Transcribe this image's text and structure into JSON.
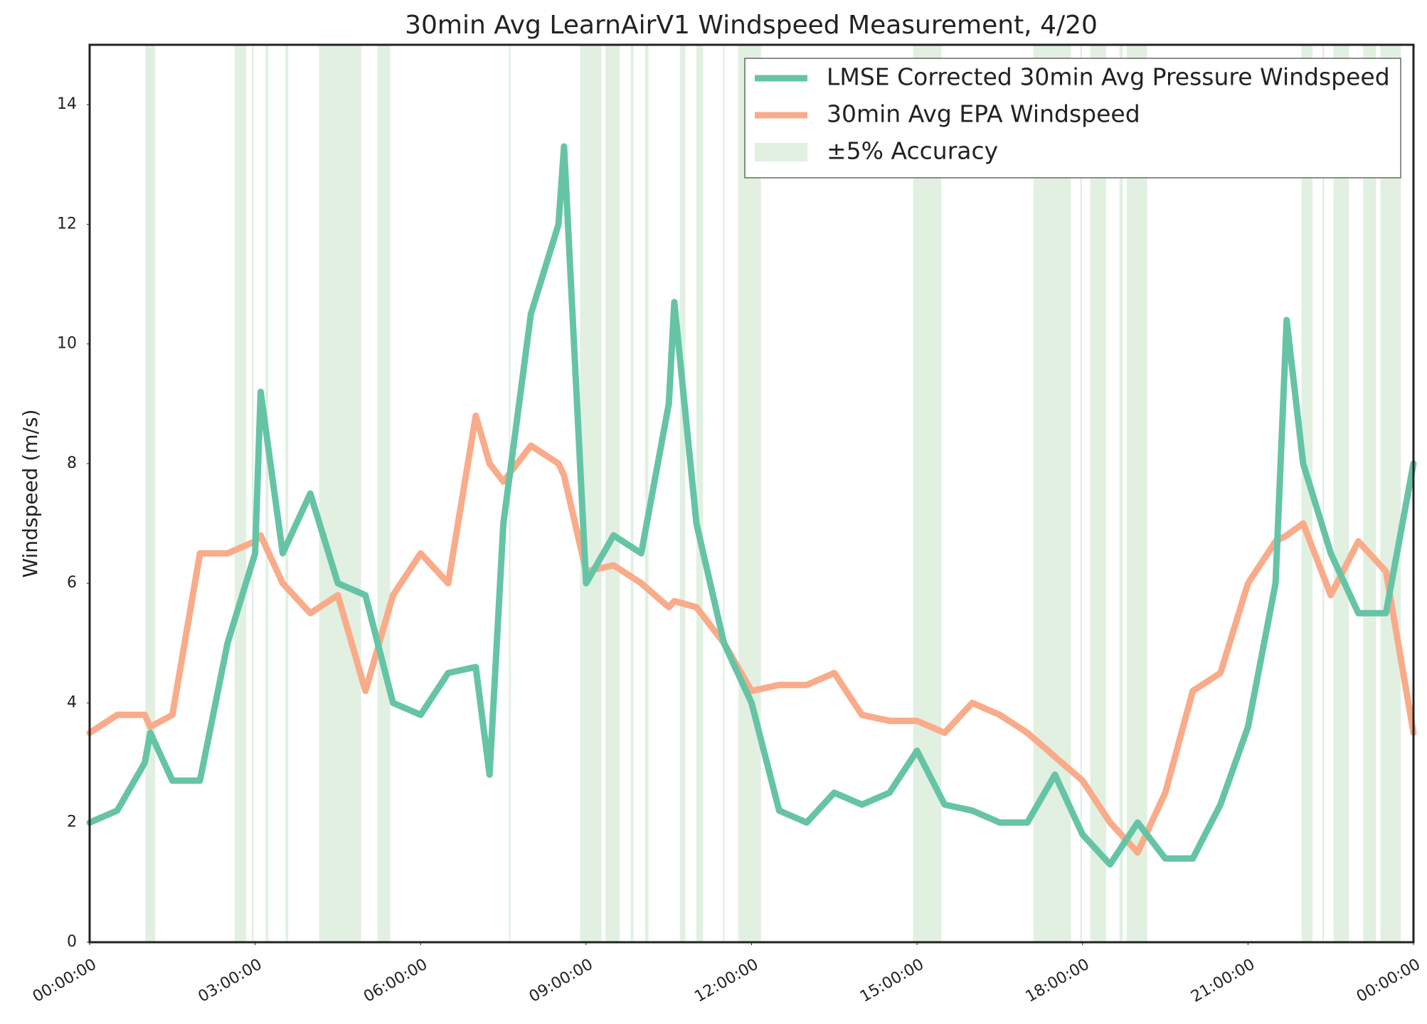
{
  "chart_data": {
    "type": "line",
    "title": "30min Avg LearnAirV1 Windspeed Measurement, 4/20",
    "y_label": "Windspeed (m/s)",
    "x": [
      0,
      0.5,
      1,
      1.1,
      1.5,
      2,
      2.5,
      3,
      3.1,
      3.5,
      4,
      4.5,
      5,
      5.5,
      6,
      6.5,
      7,
      7.25,
      7.5,
      8,
      8.5,
      8.6,
      9,
      9.5,
      10,
      10.5,
      10.6,
      11,
      11.5,
      12,
      12.5,
      13,
      13.5,
      14,
      14.5,
      15,
      15.5,
      16,
      16.5,
      17,
      17.5,
      18,
      18.5,
      19,
      19.5,
      20,
      20.5,
      21,
      21.5,
      21.7,
      22,
      22.5,
      23,
      23.5,
      24
    ],
    "series": [
      {
        "name": "LMSE Corrected 30min Avg Pressure Windspeed",
        "color": "#66c4a6",
        "values": [
          2.0,
          2.2,
          3.0,
          3.5,
          2.7,
          2.7,
          5.0,
          6.5,
          9.2,
          6.5,
          7.5,
          6.0,
          5.8,
          4.0,
          3.8,
          4.5,
          4.6,
          2.8,
          7.0,
          10.5,
          12.0,
          13.3,
          6.0,
          6.8,
          6.5,
          9.0,
          10.7,
          7.0,
          5.0,
          4.0,
          2.2,
          2.0,
          2.5,
          2.3,
          2.5,
          3.2,
          2.3,
          2.2,
          2.0,
          2.0,
          2.8,
          1.8,
          1.3,
          2.0,
          1.4,
          1.4,
          2.3,
          3.6,
          6.0,
          10.4,
          8.0,
          6.5,
          5.5,
          5.5,
          8.0
        ]
      },
      {
        "name": "30min Avg EPA Windspeed",
        "color": "#f9ab8a",
        "values": [
          3.5,
          3.8,
          3.8,
          3.6,
          3.8,
          6.5,
          6.5,
          6.7,
          6.8,
          6.0,
          5.5,
          5.8,
          4.2,
          5.8,
          6.5,
          6.0,
          8.8,
          8.0,
          7.7,
          8.3,
          8.0,
          7.8,
          6.2,
          6.3,
          6.0,
          5.6,
          5.7,
          5.6,
          5.0,
          4.2,
          4.3,
          4.3,
          4.5,
          3.8,
          3.7,
          3.7,
          3.5,
          4.0,
          3.8,
          3.5,
          3.1,
          2.7,
          2.0,
          1.5,
          2.5,
          4.2,
          4.5,
          6.0,
          6.7,
          6.8,
          7.0,
          5.8,
          6.7,
          6.2,
          3.5
        ]
      }
    ],
    "bands": {
      "name": "±5% Accuracy",
      "color": "#e1f0e1",
      "ranges": [
        [
          1.01,
          1.19
        ],
        [
          2.63,
          2.84
        ],
        [
          2.94,
          2.97
        ],
        [
          3.19,
          3.24
        ],
        [
          3.55,
          3.6
        ],
        [
          4.16,
          4.92
        ],
        [
          5.22,
          5.45
        ],
        [
          7.6,
          7.63
        ],
        [
          8.89,
          9.28
        ],
        [
          9.35,
          9.61
        ],
        [
          9.81,
          9.86
        ],
        [
          10.07,
          10.13
        ],
        [
          10.7,
          10.8
        ],
        [
          11.0,
          11.12
        ],
        [
          11.48,
          11.51
        ],
        [
          11.76,
          12.17
        ],
        [
          14.93,
          15.44
        ],
        [
          17.11,
          17.79
        ],
        [
          17.96,
          17.99
        ],
        [
          18.14,
          18.43
        ],
        [
          18.67,
          18.73
        ],
        [
          18.8,
          19.17
        ],
        [
          21.97,
          22.17
        ],
        [
          22.35,
          22.38
        ],
        [
          22.55,
          22.83
        ],
        [
          23.09,
          23.32
        ],
        [
          23.4,
          23.77
        ]
      ]
    },
    "xlim": [
      0,
      24
    ],
    "xticks": [
      {
        "value": 0,
        "label": "00:00:00"
      },
      {
        "value": 3,
        "label": "03:00:00"
      },
      {
        "value": 6,
        "label": "06:00:00"
      },
      {
        "value": 9,
        "label": "09:00:00"
      },
      {
        "value": 12,
        "label": "12:00:00"
      },
      {
        "value": 15,
        "label": "15:00:00"
      },
      {
        "value": 18,
        "label": "18:00:00"
      },
      {
        "value": 21,
        "label": "21:00:00"
      },
      {
        "value": 24,
        "label": "00:00:00"
      }
    ],
    "ylim": [
      0,
      15
    ],
    "yticks": [
      0,
      2,
      4,
      6,
      8,
      10,
      12,
      14
    ],
    "grid": false,
    "legend": "upper right"
  }
}
